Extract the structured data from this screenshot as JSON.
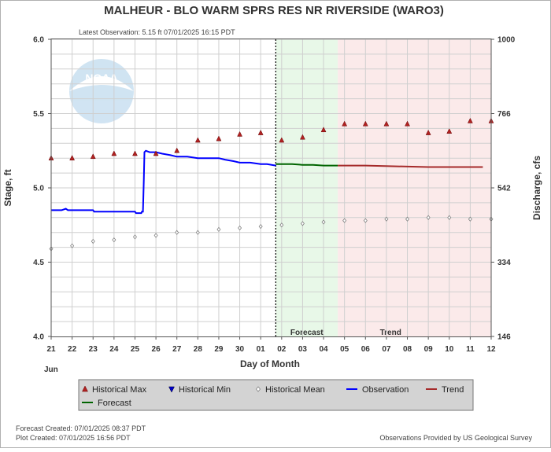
{
  "title": "MALHEUR - BLO WARM SPRS RES NR RIVERSIDE  (WARO3)",
  "latest_observation": "Latest Observation: 5.15 ft 07/01/2025 16:15 PDT",
  "watermark": "NOAA",
  "footer": {
    "forecast_created": "Forecast Created: 07/01/2025 08:37 PDT",
    "plot_created": "Plot Created: 07/01/2025 16:56 PDT",
    "provider": "Observations Provided by US Geological Survey"
  },
  "colors": {
    "observation": "#0000ff",
    "forecast": "#006400",
    "trend": "#a52a2a",
    "historical_max": "#b22222",
    "historical_min": "#0000cd",
    "historical_mean": "#808080",
    "forecast_region": "#e8f8e8",
    "trend_region": "#fbeaea"
  },
  "chart_data": {
    "type": "line",
    "xlabel": "Day of Month",
    "ylabel_left": "Stage, ft",
    "ylabel_right": "Discharge, cfs",
    "month_label": "Jun",
    "x_tick_labels": [
      "21",
      "22",
      "23",
      "24",
      "25",
      "26",
      "27",
      "28",
      "29",
      "30",
      "01",
      "02",
      "03",
      "04",
      "05",
      "06",
      "07",
      "08",
      "09",
      "10",
      "11",
      "12"
    ],
    "xlim_days": [
      0,
      21
    ],
    "ylim": [
      4.0,
      6.0
    ],
    "y_ticks_left": [
      "4.0",
      "4.5",
      "5.0",
      "5.5",
      "6.0"
    ],
    "y_ticks_right": [
      {
        "stage": 4.0,
        "label": "146"
      },
      {
        "stage": 4.5,
        "label": "334"
      },
      {
        "stage": 5.0,
        "label": "542"
      },
      {
        "stage": 5.5,
        "label": "766"
      },
      {
        "stage": 6.0,
        "label": "1000"
      }
    ],
    "grid": true,
    "region_labels": {
      "forecast": "Forecast",
      "trend": "Trend"
    },
    "regions": {
      "now": 10.72,
      "forecast_end": 13.68,
      "trend_end": 21
    },
    "legend": [
      {
        "key": "historical_max",
        "label": "Historical Max",
        "marker": "triangle-up"
      },
      {
        "key": "historical_min",
        "label": "Historical Min",
        "marker": "triangle-down"
      },
      {
        "key": "historical_mean",
        "label": "Historical Mean",
        "marker": "diamond"
      },
      {
        "key": "observation",
        "label": "Observation",
        "marker": "line"
      },
      {
        "key": "trend",
        "label": "Trend",
        "marker": "line"
      },
      {
        "key": "forecast",
        "label": "Forecast",
        "marker": "line"
      }
    ],
    "series": {
      "observation": [
        [
          0.0,
          4.85
        ],
        [
          0.5,
          4.85
        ],
        [
          0.7,
          4.86
        ],
        [
          0.8,
          4.85
        ],
        [
          2.0,
          4.85
        ],
        [
          2.05,
          4.84
        ],
        [
          4.0,
          4.84
        ],
        [
          4.05,
          4.83
        ],
        [
          4.3,
          4.83
        ],
        [
          4.33,
          4.84
        ],
        [
          4.38,
          4.84
        ],
        [
          4.42,
          5.05
        ],
        [
          4.45,
          5.24
        ],
        [
          4.52,
          5.25
        ],
        [
          4.7,
          5.24
        ],
        [
          5.0,
          5.24
        ],
        [
          5.3,
          5.23
        ],
        [
          5.7,
          5.22
        ],
        [
          6.0,
          5.21
        ],
        [
          6.5,
          5.21
        ],
        [
          7.0,
          5.2
        ],
        [
          7.5,
          5.2
        ],
        [
          8.0,
          5.2
        ],
        [
          8.3,
          5.19
        ],
        [
          8.7,
          5.18
        ],
        [
          9.0,
          5.17
        ],
        [
          9.5,
          5.17
        ],
        [
          10.0,
          5.16
        ],
        [
          10.3,
          5.16
        ],
        [
          10.72,
          5.15
        ]
      ],
      "forecast": [
        [
          10.72,
          5.16
        ],
        [
          11.5,
          5.16
        ],
        [
          12.0,
          5.155
        ],
        [
          12.5,
          5.155
        ],
        [
          13.0,
          5.15
        ],
        [
          13.68,
          5.15
        ]
      ],
      "trend": [
        [
          13.68,
          5.15
        ],
        [
          15.0,
          5.15
        ],
        [
          16.5,
          5.145
        ],
        [
          18.0,
          5.14
        ],
        [
          19.5,
          5.14
        ],
        [
          20.6,
          5.14
        ]
      ],
      "historical_max": [
        [
          0,
          5.2
        ],
        [
          1,
          5.2
        ],
        [
          2,
          5.21
        ],
        [
          3,
          5.23
        ],
        [
          4,
          5.23
        ],
        [
          5,
          5.23
        ],
        [
          6,
          5.25
        ],
        [
          7,
          5.32
        ],
        [
          8,
          5.33
        ],
        [
          9,
          5.36
        ],
        [
          10,
          5.37
        ],
        [
          11,
          5.32
        ],
        [
          12,
          5.34
        ],
        [
          13,
          5.39
        ],
        [
          14,
          5.43
        ],
        [
          15,
          5.43
        ],
        [
          16,
          5.43
        ],
        [
          17,
          5.43
        ],
        [
          18,
          5.37
        ],
        [
          19,
          5.38
        ],
        [
          20,
          5.45
        ],
        [
          21,
          5.45
        ]
      ],
      "historical_mean": [
        [
          0,
          4.59
        ],
        [
          1,
          4.61
        ],
        [
          2,
          4.64
        ],
        [
          3,
          4.65
        ],
        [
          4,
          4.67
        ],
        [
          5,
          4.68
        ],
        [
          6,
          4.7
        ],
        [
          7,
          4.7
        ],
        [
          8,
          4.72
        ],
        [
          9,
          4.73
        ],
        [
          10,
          4.74
        ],
        [
          11,
          4.75
        ],
        [
          12,
          4.76
        ],
        [
          13,
          4.77
        ],
        [
          14,
          4.78
        ],
        [
          15,
          4.78
        ],
        [
          16,
          4.79
        ],
        [
          17,
          4.79
        ],
        [
          18,
          4.8
        ],
        [
          19,
          4.8
        ],
        [
          20,
          4.79
        ],
        [
          21,
          4.79
        ]
      ]
    }
  }
}
